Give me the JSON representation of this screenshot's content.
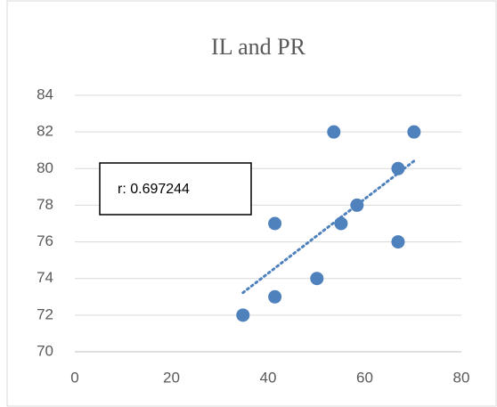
{
  "chart_data": {
    "type": "scatter",
    "title": "IL and PR",
    "annotation": "r: 0.697244",
    "series": [
      {
        "name": null,
        "color": "#4f81bd",
        "x": [
          34.8,
          41.4,
          41.4,
          50.1,
          53.6,
          55.1,
          58.4,
          66.9,
          66.9,
          70.2
        ],
        "values": [
          72,
          77,
          73,
          74,
          82,
          77,
          78,
          80,
          76,
          82
        ]
      }
    ],
    "trendline": true,
    "xlim": [
      0,
      80
    ],
    "xticks": [
      0,
      20,
      40,
      60,
      80
    ],
    "ylim": [
      70,
      84
    ],
    "yticks": [
      70,
      72,
      74,
      76,
      78,
      80,
      82,
      84
    ],
    "grid": true
  }
}
